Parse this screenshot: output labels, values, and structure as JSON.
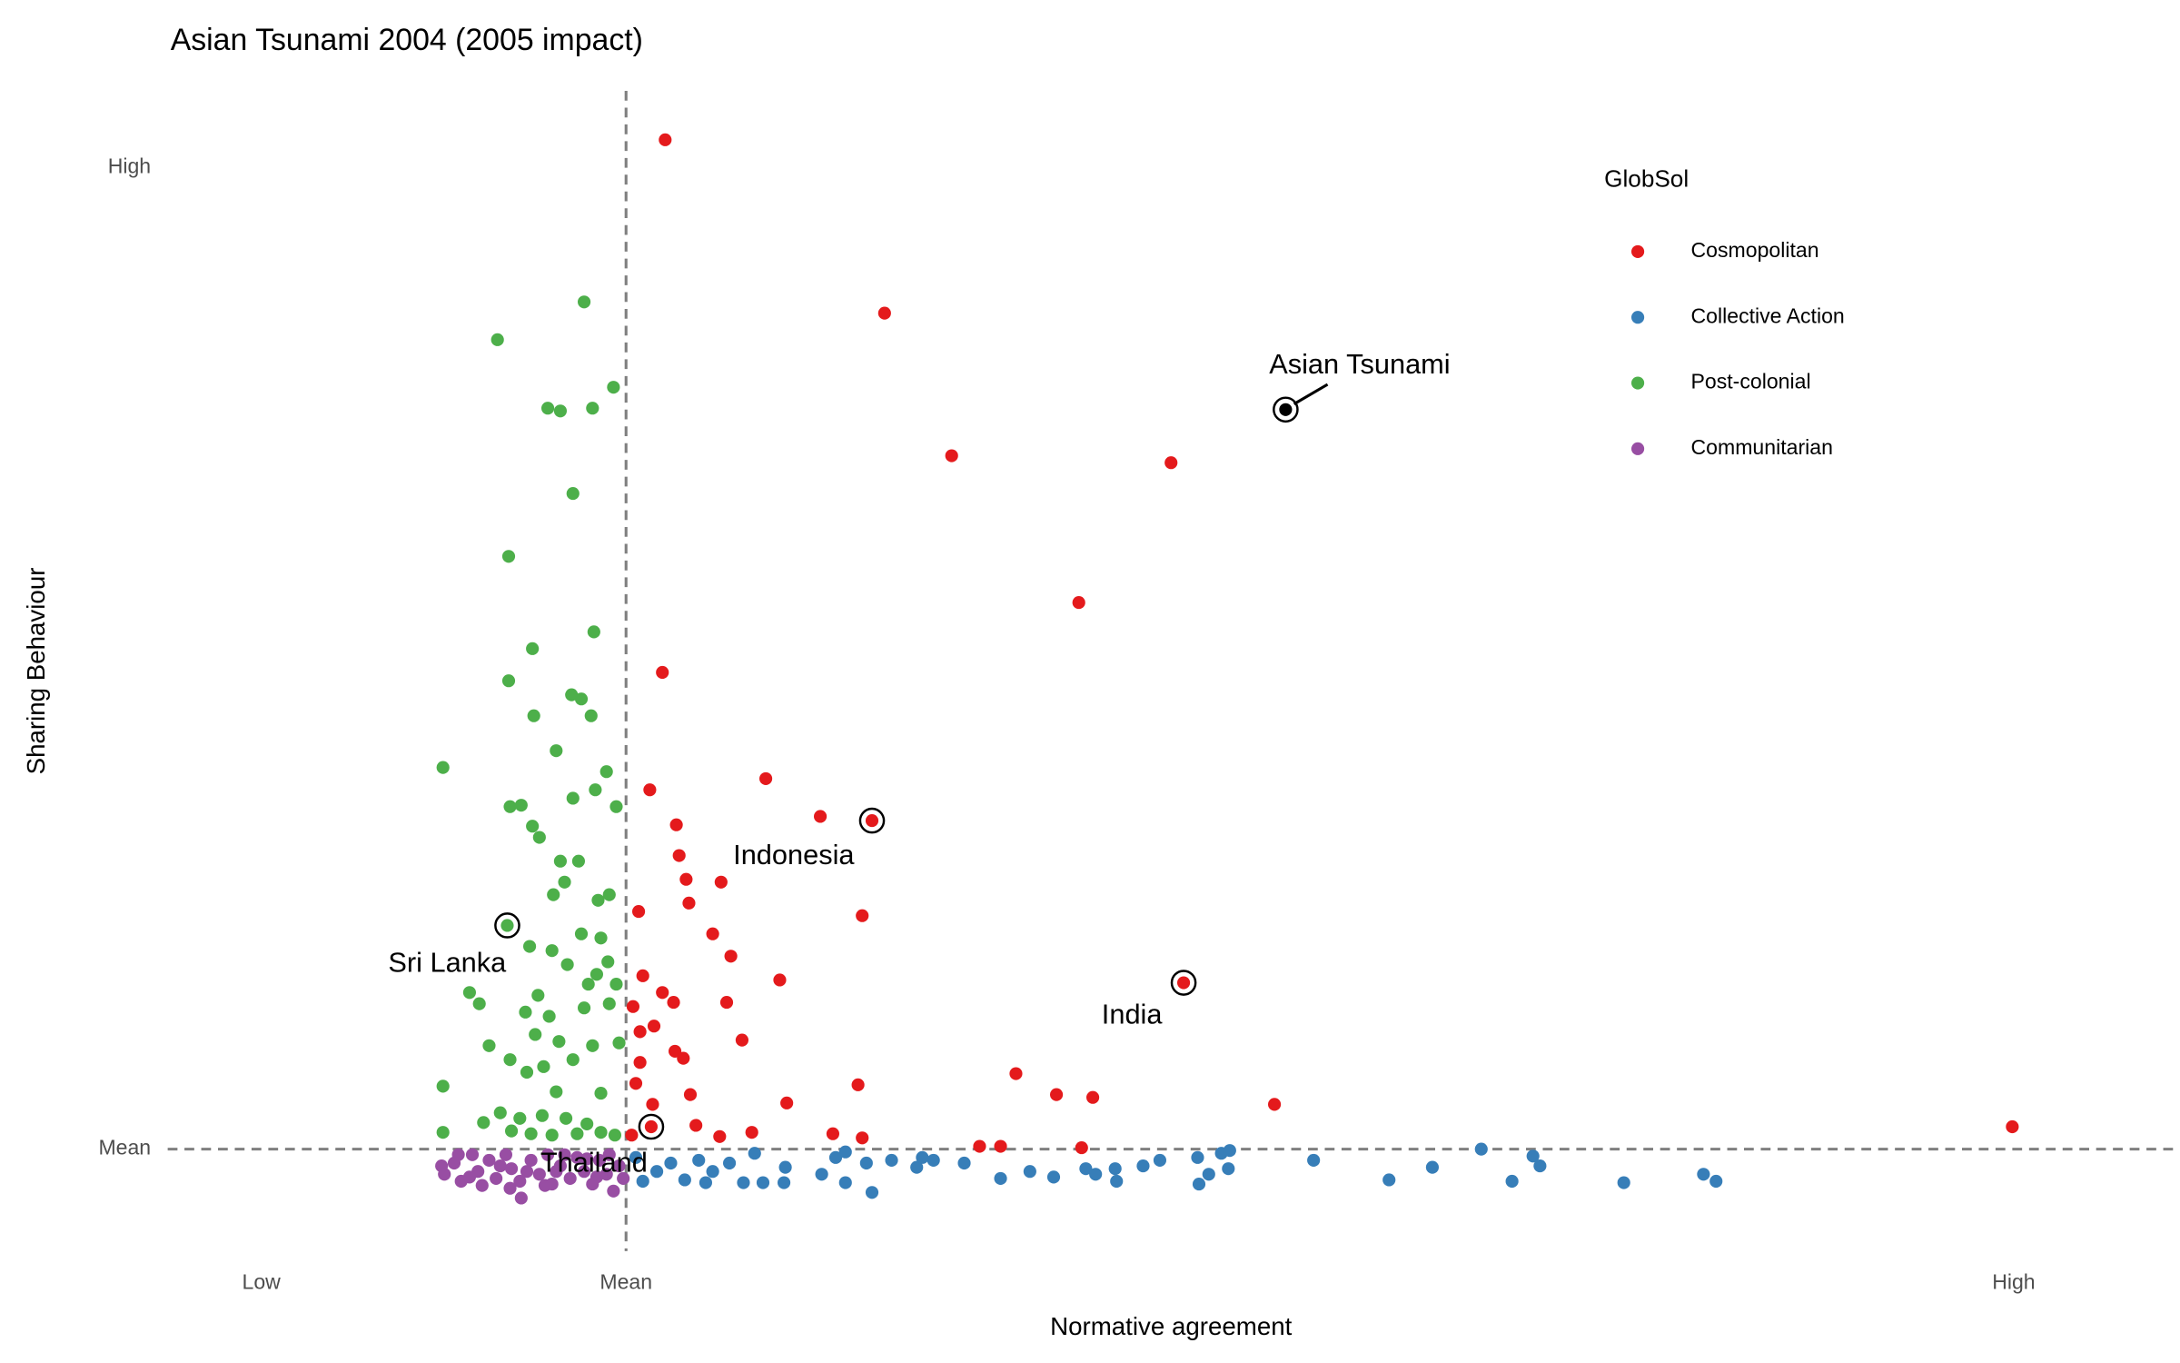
{
  "chart_data": {
    "type": "scatter",
    "title": "Asian Tsunami 2004 (2005 impact)",
    "x_label": "Normative agreement",
    "y_label": "Sharing Behaviour",
    "legend_title": "GlobSol",
    "legend_position": "top-right",
    "xlim": [
      -3.28,
      11.07
    ],
    "ylim": [
      -0.73,
      7.57
    ],
    "xticks": [
      {
        "value": -2.61,
        "label": "Low"
      },
      {
        "value": 0,
        "label": "Mean"
      },
      {
        "value": 9.93,
        "label": "High"
      }
    ],
    "yticks": [
      {
        "value": 0,
        "label": "Mean"
      },
      {
        "value": 7.02,
        "label": "High"
      }
    ],
    "grid": false,
    "reference_lines": [
      {
        "axis": "x",
        "value": 0
      },
      {
        "axis": "y",
        "value": 0
      }
    ],
    "series": [
      {
        "name": "Cosmopolitan",
        "color": "#e41a1c",
        "x": [
          0.28,
          1.85,
          2.33,
          3.9,
          3.24,
          0.26,
          1.0,
          0.17,
          1.39,
          0.36,
          0.38,
          0.43,
          0.68,
          0.45,
          0.09,
          1.69,
          0.62,
          0.75,
          0.12,
          1.1,
          0.26,
          0.72,
          0.34,
          0.05,
          0.2,
          0.1,
          0.83,
          0.35,
          0.1,
          0.41,
          2.79,
          1.66,
          3.08,
          3.34,
          0.07,
          0.46,
          1.15,
          4.64,
          0.19,
          9.92,
          1.48,
          1.69,
          0.9,
          2.53,
          2.68,
          3.26,
          0.5,
          0.67,
          0.04,
          1.76,
          3.99,
          0.18
        ],
        "values": [
          7.22,
          5.98,
          4.96,
          4.91,
          3.91,
          3.41,
          2.65,
          2.57,
          2.38,
          2.32,
          2.1,
          1.93,
          1.91,
          1.76,
          1.7,
          1.67,
          1.54,
          1.38,
          1.24,
          1.21,
          1.12,
          1.05,
          1.05,
          1.02,
          0.88,
          0.84,
          0.78,
          0.7,
          0.62,
          0.65,
          0.54,
          0.46,
          0.39,
          0.37,
          0.47,
          0.39,
          0.33,
          0.32,
          0.32,
          0.16,
          0.11,
          0.08,
          0.12,
          0.02,
          0.02,
          0.01,
          0.17,
          0.09,
          0.1,
          2.35,
          1.19,
          0.16
        ]
      },
      {
        "name": "Collective Action",
        "color": "#377eb8",
        "x": [
          6.12,
          6.49,
          6.54,
          4.92,
          5.77,
          5.46,
          6.34,
          7.14,
          7.71,
          7.8,
          4.26,
          4.09,
          4.31,
          4.17,
          4.1,
          3.82,
          3.7,
          3.5,
          3.51,
          3.29,
          3.36,
          3.06,
          2.89,
          2.68,
          2.42,
          2.2,
          2.08,
          1.9,
          1.72,
          1.76,
          1.57,
          1.5,
          1.4,
          1.14,
          1.13,
          0.98,
          0.84,
          0.92,
          0.74,
          0.62,
          0.52,
          0.42,
          0.32,
          0.22,
          0.12,
          0.07,
          0.57,
          1.57,
          2.12,
          4.32
        ],
        "values": [
          0.0,
          -0.05,
          -0.12,
          -0.08,
          -0.13,
          -0.22,
          -0.23,
          -0.24,
          -0.18,
          -0.23,
          -0.03,
          -0.06,
          -0.14,
          -0.18,
          -0.25,
          -0.08,
          -0.12,
          -0.14,
          -0.23,
          -0.14,
          -0.18,
          -0.2,
          -0.16,
          -0.21,
          -0.1,
          -0.08,
          -0.13,
          -0.08,
          -0.1,
          -0.31,
          -0.24,
          -0.06,
          -0.18,
          -0.13,
          -0.24,
          -0.24,
          -0.24,
          -0.03,
          -0.1,
          -0.16,
          -0.08,
          -0.22,
          -0.1,
          -0.16,
          -0.23,
          -0.06,
          -0.24,
          -0.02,
          -0.06,
          -0.01
        ]
      },
      {
        "name": "Post-colonial",
        "color": "#4daf4a",
        "x": [
          -0.3,
          -0.92,
          -0.09,
          -0.56,
          -0.47,
          -0.24,
          -0.38,
          -0.84,
          -0.23,
          -0.67,
          -0.84,
          -0.39,
          -0.32,
          -0.66,
          -0.25,
          -0.5,
          -1.31,
          -0.14,
          -0.22,
          -0.38,
          -0.83,
          -0.75,
          -0.07,
          -0.67,
          -0.62,
          -0.47,
          -0.34,
          -0.44,
          -0.52,
          -0.12,
          -0.2,
          -0.32,
          -0.18,
          -0.69,
          -0.53,
          -0.42,
          -0.13,
          -0.21,
          -1.12,
          -0.27,
          -0.63,
          -0.07,
          -1.05,
          -0.3,
          -0.72,
          -0.55,
          -0.12,
          -0.65,
          -0.48,
          -0.98,
          -0.24,
          -0.05,
          -0.83,
          -0.59,
          -0.38,
          -1.31,
          -0.71,
          -0.5,
          -0.18,
          -0.9,
          -0.76,
          -0.6,
          -0.43,
          -0.28,
          -1.02,
          -1.31,
          -0.82,
          -0.68,
          -0.53,
          -0.35,
          -0.18,
          -0.08,
          -0.85
        ],
        "values": [
          6.06,
          5.79,
          5.45,
          5.3,
          5.28,
          5.3,
          4.69,
          4.24,
          3.7,
          3.58,
          3.35,
          3.25,
          3.22,
          3.1,
          3.1,
          2.85,
          2.73,
          2.7,
          2.57,
          2.51,
          2.45,
          2.46,
          2.45,
          2.31,
          2.23,
          2.06,
          2.06,
          1.91,
          1.82,
          1.82,
          1.78,
          1.54,
          1.51,
          1.45,
          1.42,
          1.32,
          1.34,
          1.25,
          1.12,
          1.18,
          1.1,
          1.18,
          1.04,
          1.01,
          0.98,
          0.95,
          1.04,
          0.82,
          0.77,
          0.74,
          0.74,
          0.76,
          0.64,
          0.59,
          0.64,
          0.45,
          0.55,
          0.41,
          0.4,
          0.26,
          0.22,
          0.24,
          0.22,
          0.18,
          0.19,
          0.12,
          0.13,
          0.11,
          0.1,
          0.11,
          0.12,
          0.1,
          1.6
        ]
      },
      {
        "name": "Communitarian",
        "color": "#984ea3",
        "x": [
          -1.3,
          -1.23,
          -1.18,
          -1.1,
          -1.06,
          -0.98,
          -0.93,
          -0.86,
          -0.82,
          -0.75,
          -0.76,
          -0.68,
          -0.62,
          -0.56,
          -0.53,
          -0.47,
          -0.4,
          -0.35,
          -0.3,
          -0.24,
          -0.19,
          -0.14,
          -0.09,
          -0.05,
          -1.32,
          -1.2,
          -1.03,
          -0.9,
          -0.71,
          -0.58,
          -0.44,
          -0.28,
          -0.12,
          -0.02,
          -1.12,
          -0.83,
          -0.5,
          -0.21
        ],
        "values": [
          -0.18,
          -0.1,
          -0.23,
          -0.04,
          -0.16,
          -0.08,
          -0.21,
          -0.04,
          -0.14,
          -0.35,
          -0.23,
          -0.08,
          -0.18,
          -0.04,
          -0.25,
          -0.12,
          -0.21,
          -0.06,
          -0.16,
          -0.25,
          -0.08,
          -0.18,
          -0.3,
          -0.12,
          -0.12,
          -0.04,
          -0.26,
          -0.12,
          -0.16,
          -0.26,
          -0.04,
          -0.07,
          -0.04,
          -0.21,
          -0.2,
          -0.28,
          -0.16,
          -0.2
        ]
      }
    ],
    "highlights": [
      {
        "label": "Asian Tsunami",
        "x": 4.72,
        "y": 5.29,
        "color": "#000000"
      },
      {
        "label": "Indonesia",
        "x": 1.76,
        "y": 2.35
      },
      {
        "label": "India",
        "x": 3.99,
        "y": 1.19
      },
      {
        "label": "Sri Lanka",
        "x": -0.85,
        "y": 1.6
      },
      {
        "label": "Thailand",
        "x": 0.18,
        "y": 0.16
      }
    ]
  }
}
